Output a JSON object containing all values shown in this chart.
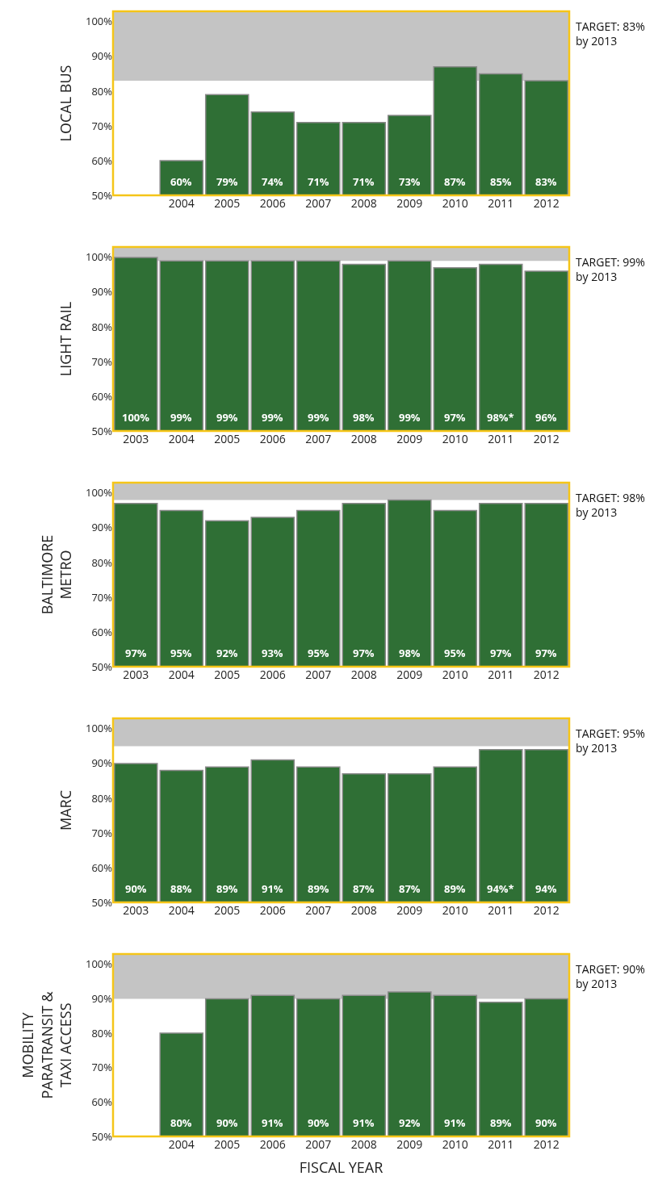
{
  "chart_data": [
    {
      "type": "bar",
      "ylabel": "LOCAL BUS",
      "categories": [
        null,
        "2004",
        "2005",
        "2006",
        "2007",
        "2008",
        "2009",
        "2010",
        "2011",
        "2012"
      ],
      "values": [
        null,
        60,
        79,
        74,
        71,
        71,
        73,
        87,
        85,
        83
      ],
      "value_labels": [
        null,
        "60%",
        "79%",
        "74%",
        "71%",
        "71%",
        "73%",
        "87%",
        "85%",
        "83%"
      ],
      "color": "#2f6f35",
      "ylim": [
        50,
        103
      ],
      "yticks": [
        {
          "value": 50,
          "label": "50%"
        },
        {
          "value": 60,
          "label": "60%"
        },
        {
          "value": 70,
          "label": "70%"
        },
        {
          "value": 80,
          "label": "80%"
        },
        {
          "value": 90,
          "label": "90%"
        },
        {
          "value": 100,
          "label": "100%"
        }
      ],
      "bands": [
        {
          "axis": "y",
          "from": 83,
          "to": 103,
          "color": "#c4c4c4"
        }
      ],
      "annotations": [
        "TARGET: 83%\nby 2013"
      ]
    },
    {
      "type": "bar",
      "ylabel": "LIGHT RAIL",
      "categories": [
        "2003",
        "2004",
        "2005",
        "2006",
        "2007",
        "2008",
        "2009",
        "2010",
        "2011",
        "2012"
      ],
      "values": [
        100,
        99,
        99,
        99,
        99,
        98,
        99,
        97,
        98,
        96
      ],
      "value_labels": [
        "100%",
        "99%",
        "99%",
        "99%",
        "99%",
        "98%",
        "99%",
        "97%",
        "98%*",
        "96%"
      ],
      "color": "#2f6f35",
      "ylim": [
        50,
        103
      ],
      "yticks": [
        {
          "value": 50,
          "label": "50%"
        },
        {
          "value": 60,
          "label": "60%"
        },
        {
          "value": 70,
          "label": "70%"
        },
        {
          "value": 80,
          "label": "80%"
        },
        {
          "value": 90,
          "label": "90%"
        },
        {
          "value": 100,
          "label": "100%"
        }
      ],
      "bands": [
        {
          "axis": "y",
          "from": 99,
          "to": 103,
          "color": "#c4c4c4"
        }
      ],
      "annotations": [
        "TARGET: 99%\nby 2013"
      ]
    },
    {
      "type": "bar",
      "ylabel": "BALTIMORE\nMETRO",
      "categories": [
        "2003",
        "2004",
        "2005",
        "2006",
        "2007",
        "2008",
        "2009",
        "2010",
        "2011",
        "2012"
      ],
      "values": [
        97,
        95,
        92,
        93,
        95,
        97,
        98,
        95,
        97,
        97
      ],
      "value_labels": [
        "97%",
        "95%",
        "92%",
        "93%",
        "95%",
        "97%",
        "98%",
        "95%",
        "97%",
        "97%"
      ],
      "color": "#2f6f35",
      "ylim": [
        50,
        103
      ],
      "yticks": [
        {
          "value": 50,
          "label": "50%"
        },
        {
          "value": 60,
          "label": "60%"
        },
        {
          "value": 70,
          "label": "70%"
        },
        {
          "value": 80,
          "label": "80%"
        },
        {
          "value": 90,
          "label": "90%"
        },
        {
          "value": 100,
          "label": "100%"
        }
      ],
      "bands": [
        {
          "axis": "y",
          "from": 98,
          "to": 103,
          "color": "#c4c4c4"
        }
      ],
      "annotations": [
        "TARGET: 98%\nby 2013"
      ]
    },
    {
      "type": "bar",
      "ylabel": "MARC",
      "categories": [
        "2003",
        "2004",
        "2005",
        "2006",
        "2007",
        "2008",
        "2009",
        "2010",
        "2011",
        "2012"
      ],
      "values": [
        90,
        88,
        89,
        91,
        89,
        87,
        87,
        89,
        94,
        94
      ],
      "value_labels": [
        "90%",
        "88%",
        "89%",
        "91%",
        "89%",
        "87%",
        "87%",
        "89%",
        "94%*",
        "94%"
      ],
      "color": "#2f6f35",
      "ylim": [
        50,
        103
      ],
      "yticks": [
        {
          "value": 50,
          "label": "50%"
        },
        {
          "value": 60,
          "label": "60%"
        },
        {
          "value": 70,
          "label": "70%"
        },
        {
          "value": 80,
          "label": "80%"
        },
        {
          "value": 90,
          "label": "90%"
        },
        {
          "value": 100,
          "label": "100%"
        }
      ],
      "bands": [
        {
          "axis": "y",
          "from": 95,
          "to": 103,
          "color": "#c4c4c4"
        }
      ],
      "annotations": [
        "TARGET: 95%\nby 2013"
      ]
    },
    {
      "type": "bar",
      "ylabel": "MOBILITY\nPARATRANSIT &\nTAXI ACCESS",
      "xlabel": "FISCAL YEAR",
      "categories": [
        null,
        "2004",
        "2005",
        "2006",
        "2007",
        "2008",
        "2009",
        "2010",
        "2011",
        "2012"
      ],
      "values": [
        null,
        80,
        90,
        91,
        90,
        91,
        92,
        91,
        89,
        90
      ],
      "value_labels": [
        null,
        "80%",
        "90%",
        "91%",
        "90%",
        "91%",
        "92%",
        "91%",
        "89%",
        "90%"
      ],
      "color": "#2f6f35",
      "ylim": [
        50,
        103
      ],
      "yticks": [
        {
          "value": 50,
          "label": "50%"
        },
        {
          "value": 60,
          "label": "60%"
        },
        {
          "value": 70,
          "label": "70%"
        },
        {
          "value": 80,
          "label": "80%"
        },
        {
          "value": 90,
          "label": "90%"
        },
        {
          "value": 100,
          "label": "100%"
        }
      ],
      "bands": [
        {
          "axis": "y",
          "from": 90,
          "to": 103,
          "color": "#c4c4c4"
        }
      ],
      "annotations": [
        "TARGET: 90%\nby 2013"
      ]
    }
  ]
}
